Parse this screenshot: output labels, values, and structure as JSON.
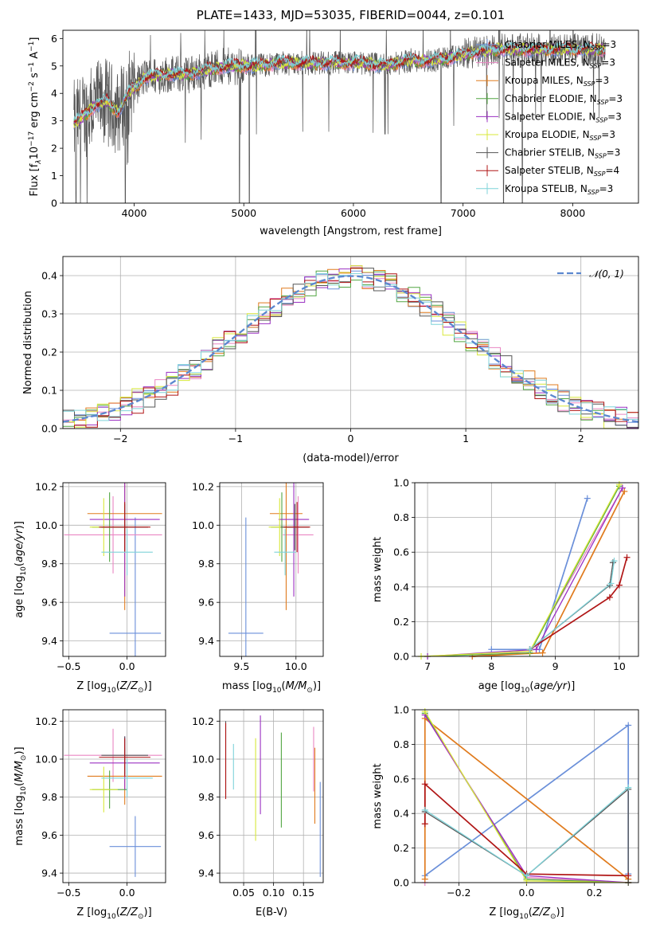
{
  "colors": {
    "Chabrier MILES": "#6a8fd9",
    "Salpeter MILES": "#ea86c3",
    "Kroupa MILES": "#e07b1e",
    "Chabrier ELODIE": "#52a642",
    "Salpeter ELODIE": "#9b30c2",
    "Kroupa ELODIE": "#d8e83a",
    "Chabrier STELIB": "#555555",
    "Salpeter STELIB": "#b01515",
    "Kroupa STELIB": "#7fd3d9"
  },
  "chart_data": [
    {
      "id": "spectrum",
      "type": "line",
      "title": "PLATE=1433, MJD=53035, FIBERID=0044, z=0.101",
      "xlabel": "wavelength [Angstrom, rest frame]",
      "ylabel_parts": [
        "Flux [f",
        "λ",
        "10",
        "−17",
        " erg cm",
        "−2",
        " s",
        "−1",
        " A",
        "−1",
        "]"
      ],
      "xlim": [
        3350,
        8600
      ],
      "ylim": [
        0,
        6.3
      ],
      "xticks": [
        4000,
        5000,
        6000,
        7000,
        8000
      ],
      "yticks": [
        0,
        1,
        2,
        3,
        4,
        5,
        6
      ],
      "legend": [
        {
          "name": "Chabrier MILES",
          "nssp": "3"
        },
        {
          "name": "Salpeter MILES",
          "nssp": "3"
        },
        {
          "name": "Kroupa MILES",
          "nssp": "3"
        },
        {
          "name": "Chabrier ELODIE",
          "nssp": "3"
        },
        {
          "name": "Salpeter ELODIE",
          "nssp": "3"
        },
        {
          "name": "Kroupa ELODIE",
          "nssp": "3"
        },
        {
          "name": "Chabrier STELIB",
          "nssp": "3"
        },
        {
          "name": "Salpeter STELIB",
          "nssp": "4"
        },
        {
          "name": "Kroupa STELIB",
          "nssp": "3"
        }
      ],
      "legend_prefix": "N",
      "legend_sub": "SSP",
      "legend_placement": "right",
      "data_profile": {
        "x": [
          3450,
          3550,
          3650,
          3750,
          3850,
          3950,
          4100,
          4300,
          4500,
          4700,
          4900,
          5100,
          5300,
          5500,
          5700,
          5900,
          6100,
          6300,
          6500,
          6700,
          6900,
          7100,
          7300
        ],
        "y": [
          2.9,
          3.2,
          3.6,
          3.7,
          3.3,
          4.0,
          4.6,
          4.7,
          4.7,
          4.9,
          5.0,
          5.0,
          5.1,
          5.1,
          5.1,
          5.1,
          5.1,
          5.0,
          5.2,
          5.2,
          5.3,
          5.5,
          5.6
        ]
      },
      "dips": [
        3470,
        3510,
        3570,
        3920,
        4960,
        5050,
        6800,
        7370,
        7540
      ],
      "grid": false
    },
    {
      "id": "residuals",
      "type": "histogram",
      "xlabel": "(data-model)/error",
      "ylabel": "Normed distribution",
      "xlim": [
        -2.5,
        2.5
      ],
      "ylim": [
        0,
        0.45
      ],
      "xticks": [
        -2,
        -1,
        0,
        1,
        2
      ],
      "yticks": [
        0.0,
        0.1,
        0.2,
        0.3,
        0.4
      ],
      "legend": "𝒩(0, 1)",
      "legend_placement": "top-right",
      "bin_width": 0.1,
      "grid": true
    },
    {
      "id": "age_vs_Z",
      "type": "errorbar",
      "xlabel_parts": [
        "Z [log",
        "10",
        "(",
        "Z/Z",
        "⊙",
        ")]"
      ],
      "ylabel_parts": [
        "age  [log",
        "10",
        "(",
        "age/yr",
        ")]"
      ],
      "xlim": [
        -0.55,
        0.33
      ],
      "ylim": [
        9.32,
        10.22
      ],
      "xticks": [
        -0.5,
        0.0
      ],
      "yticks": [
        9.4,
        9.6,
        9.8,
        10.0,
        10.2
      ],
      "points": [
        {
          "model": "Chabrier MILES",
          "x": 0.07,
          "xerr": 0.22,
          "y": 9.44,
          "yerr": 0.6
        },
        {
          "model": "Salpeter MILES",
          "x": -0.12,
          "xerr": 0.42,
          "y": 9.95,
          "yerr": 0.2
        },
        {
          "model": "Kroupa MILES",
          "x": -0.02,
          "xerr": 0.32,
          "y": 10.06,
          "yerr": 0.5
        },
        {
          "model": "Chabrier ELODIE",
          "x": -0.15,
          "xerr": 0.15,
          "y": 9.99,
          "yerr": 0.18
        },
        {
          "model": "Salpeter ELODIE",
          "x": -0.02,
          "xerr": 0.3,
          "y": 10.03,
          "yerr": 0.4
        },
        {
          "model": "Kroupa ELODIE",
          "x": -0.2,
          "xerr": 0.12,
          "y": 9.99,
          "yerr": 0.15
        },
        {
          "model": "Chabrier STELIB",
          "x": -0.02,
          "xerr": 0.2,
          "y": 9.99,
          "yerr": 0.12
        },
        {
          "model": "Salpeter STELIB",
          "x": -0.02,
          "xerr": 0.22,
          "y": 9.99,
          "yerr": 0.13
        },
        {
          "model": "Kroupa STELIB",
          "x": 0.0,
          "xerr": 0.22,
          "y": 9.86,
          "yerr": 0.12
        }
      ],
      "grid": true
    },
    {
      "id": "age_vs_mass",
      "type": "errorbar",
      "xlabel_parts": [
        "mass [log",
        "10",
        "(",
        "M/M",
        "⊙",
        ")]"
      ],
      "ylabel_parts": [],
      "xlim": [
        9.3,
        10.25
      ],
      "ylim": [
        9.32,
        10.22
      ],
      "xticks": [
        9.5,
        10.0
      ],
      "yticks": [
        9.4,
        9.6,
        9.8,
        10.0,
        10.2
      ],
      "points": [
        {
          "model": "Chabrier MILES",
          "x": 9.54,
          "xerr": 0.16,
          "y": 9.44,
          "yerr": 0.6
        },
        {
          "model": "Salpeter MILES",
          "x": 10.02,
          "xerr": 0.14,
          "y": 9.95,
          "yerr": 0.2
        },
        {
          "model": "Kroupa MILES",
          "x": 9.91,
          "xerr": 0.15,
          "y": 10.06,
          "yerr": 0.5
        },
        {
          "model": "Chabrier ELODIE",
          "x": 9.87,
          "xerr": 0.1,
          "y": 9.99,
          "yerr": 0.18
        },
        {
          "model": "Salpeter ELODIE",
          "x": 9.98,
          "xerr": 0.14,
          "y": 10.03,
          "yerr": 0.4
        },
        {
          "model": "Kroupa ELODIE",
          "x": 9.85,
          "xerr": 0.1,
          "y": 9.99,
          "yerr": 0.15
        },
        {
          "model": "Chabrier STELIB",
          "x": 9.99,
          "xerr": 0.13,
          "y": 9.99,
          "yerr": 0.12
        },
        {
          "model": "Salpeter STELIB",
          "x": 10.01,
          "xerr": 0.12,
          "y": 9.99,
          "yerr": 0.13
        },
        {
          "model": "Kroupa STELIB",
          "x": 9.9,
          "xerr": 0.1,
          "y": 9.86,
          "yerr": 0.12
        }
      ],
      "grid": true
    },
    {
      "id": "weight_vs_age",
      "type": "line",
      "xlabel_parts": [
        "age  [log",
        "10",
        "(",
        "age/yr",
        ")]"
      ],
      "ylabel": "mass weight",
      "xlim": [
        6.8,
        10.3
      ],
      "ylim": [
        0,
        1
      ],
      "xticks": [
        7,
        8,
        9,
        10
      ],
      "yticks": [
        0.0,
        0.2,
        0.4,
        0.6,
        0.8,
        1.0
      ],
      "series": [
        {
          "model": "Chabrier MILES",
          "x": [
            8.0,
            8.6,
            8.75,
            9.5
          ],
          "y": [
            0.04,
            0.04,
            0.04,
            0.91
          ]
        },
        {
          "model": "Salpeter MILES",
          "x": [
            7.7,
            8.6,
            10.05
          ],
          "y": [
            0.0,
            0.03,
            0.97
          ]
        },
        {
          "model": "Kroupa MILES",
          "x": [
            7.7,
            8.8,
            10.08
          ],
          "y": [
            0.0,
            0.02,
            0.95
          ]
        },
        {
          "model": "Chabrier ELODIE",
          "x": [
            7.0,
            8.6,
            10.0
          ],
          "y": [
            0.0,
            0.02,
            0.98
          ]
        },
        {
          "model": "Salpeter ELODIE",
          "x": [
            7.0,
            8.7,
            10.05
          ],
          "y": [
            0.0,
            0.04,
            0.97
          ]
        },
        {
          "model": "Kroupa ELODIE",
          "x": [
            6.9,
            8.6,
            10.0
          ],
          "y": [
            0.0,
            0.03,
            0.99
          ]
        },
        {
          "model": "Chabrier STELIB",
          "x": [
            8.6,
            9.85,
            9.9
          ],
          "y": [
            0.04,
            0.41,
            0.54
          ]
        },
        {
          "model": "Salpeter STELIB",
          "x": [
            8.6,
            9.85,
            10.0,
            10.12
          ],
          "y": [
            0.04,
            0.34,
            0.41,
            0.57
          ]
        },
        {
          "model": "Kroupa STELIB",
          "x": [
            8.6,
            9.87,
            9.92
          ],
          "y": [
            0.04,
            0.42,
            0.55
          ]
        }
      ],
      "grid": true
    },
    {
      "id": "mass_vs_Z",
      "type": "errorbar",
      "xlabel_parts": [
        "Z [log",
        "10",
        "(",
        "Z/Z",
        "⊙",
        ")]"
      ],
      "ylabel_parts": [
        "mass [log",
        "10",
        "(",
        "M/M",
        "⊙",
        ")]"
      ],
      "xlim": [
        -0.55,
        0.33
      ],
      "ylim": [
        9.35,
        10.26
      ],
      "xticks": [
        -0.5,
        0.0
      ],
      "yticks": [
        9.4,
        9.6,
        9.8,
        10.0,
        10.2
      ],
      "points": [
        {
          "model": "Chabrier MILES",
          "x": 0.07,
          "xerr": 0.22,
          "y": 9.54,
          "yerr": 0.16
        },
        {
          "model": "Salpeter MILES",
          "x": -0.12,
          "xerr": 0.42,
          "y": 10.02,
          "yerr": 0.14
        },
        {
          "model": "Kroupa MILES",
          "x": -0.02,
          "xerr": 0.32,
          "y": 9.91,
          "yerr": 0.15
        },
        {
          "model": "Chabrier ELODIE",
          "x": -0.15,
          "xerr": 0.15,
          "y": 9.84,
          "yerr": 0.1
        },
        {
          "model": "Salpeter ELODIE",
          "x": -0.02,
          "xerr": 0.3,
          "y": 9.98,
          "yerr": 0.14
        },
        {
          "model": "Kroupa ELODIE",
          "x": -0.2,
          "xerr": 0.12,
          "y": 9.84,
          "yerr": 0.12
        },
        {
          "model": "Chabrier STELIB",
          "x": -0.02,
          "xerr": 0.2,
          "y": 10.02,
          "yerr": 0.1
        },
        {
          "model": "Salpeter STELIB",
          "x": -0.02,
          "xerr": 0.22,
          "y": 10.01,
          "yerr": 0.1
        },
        {
          "model": "Kroupa STELIB",
          "x": 0.0,
          "xerr": 0.22,
          "y": 9.9,
          "yerr": 0.1
        }
      ],
      "grid": true
    },
    {
      "id": "mass_vs_ebv",
      "type": "errorbar",
      "xlabel": "E(B-V)",
      "xlim": [
        0.01,
        0.183
      ],
      "ylim": [
        9.35,
        10.26
      ],
      "xticks": [
        0.05,
        0.1,
        0.15
      ],
      "xtick_labels": [
        "0.05",
        "0.10",
        "0.15"
      ],
      "yticks": [
        9.4,
        9.6,
        9.8,
        10.0,
        10.2
      ],
      "points": [
        {
          "model": "Chabrier MILES",
          "x": 0.178,
          "y": 9.63,
          "yerr": 0.25
        },
        {
          "model": "Salpeter MILES",
          "x": 0.167,
          "y": 10.0,
          "yerr": 0.17
        },
        {
          "model": "Kroupa MILES",
          "x": 0.169,
          "y": 9.86,
          "yerr": 0.2
        },
        {
          "model": "Chabrier ELODIE",
          "x": 0.113,
          "y": 9.89,
          "yerr": 0.25
        },
        {
          "model": "Salpeter ELODIE",
          "x": 0.078,
          "y": 9.97,
          "yerr": 0.26
        },
        {
          "model": "Kroupa ELODIE",
          "x": 0.07,
          "y": 9.84,
          "yerr": 0.27
        },
        {
          "model": "Chabrier STELIB",
          "x": 0.02,
          "y": 10.0,
          "yerr": 0.2
        },
        {
          "model": "Salpeter STELIB",
          "x": 0.02,
          "y": 9.99,
          "yerr": 0.2
        },
        {
          "model": "Kroupa STELIB",
          "x": 0.033,
          "y": 9.96,
          "yerr": 0.12
        }
      ],
      "grid": true
    },
    {
      "id": "weight_vs_Z",
      "type": "line",
      "xlabel_parts": [
        "Z [log",
        "10",
        "(",
        "Z/Z",
        "⊙",
        ")]"
      ],
      "ylabel": "mass weight",
      "xlim": [
        -0.33,
        0.33
      ],
      "ylim": [
        0,
        1
      ],
      "xticks": [
        -0.2,
        0.0,
        0.2
      ],
      "yticks": [
        0.0,
        0.2,
        0.4,
        0.6,
        0.8,
        1.0
      ],
      "series": [
        {
          "model": "Chabrier MILES",
          "x": [
            -0.3,
            0.3,
            0.3
          ],
          "y": [
            0.04,
            0.91,
            0.05
          ]
        },
        {
          "model": "Salpeter MILES",
          "x": [
            -0.3,
            -0.3,
            0.0,
            0.3
          ],
          "y": [
            0.0,
            0.97,
            0.03,
            0.0
          ]
        },
        {
          "model": "Kroupa MILES",
          "x": [
            -0.3,
            -0.3,
            0.3,
            0.3
          ],
          "y": [
            0.02,
            0.95,
            0.02,
            0.0
          ]
        },
        {
          "model": "Chabrier ELODIE",
          "x": [
            -0.3,
            0.0,
            0.3
          ],
          "y": [
            0.98,
            0.02,
            0.0
          ]
        },
        {
          "model": "Salpeter ELODIE",
          "x": [
            -0.3,
            0.0,
            0.3
          ],
          "y": [
            0.97,
            0.04,
            0.0
          ]
        },
        {
          "model": "Kroupa ELODIE",
          "x": [
            -0.3,
            0.0,
            0.3
          ],
          "y": [
            0.99,
            0.01,
            0.0
          ]
        },
        {
          "model": "Chabrier STELIB",
          "x": [
            -0.3,
            0.0,
            0.3,
            0.3
          ],
          "y": [
            0.41,
            0.04,
            0.54,
            0.0
          ]
        },
        {
          "model": "Salpeter STELIB",
          "x": [
            -0.3,
            -0.3,
            0.0,
            0.3
          ],
          "y": [
            0.34,
            0.57,
            0.05,
            0.04
          ]
        },
        {
          "model": "Kroupa STELIB",
          "x": [
            -0.3,
            0.0,
            0.3
          ],
          "y": [
            0.42,
            0.04,
            0.55
          ]
        }
      ],
      "grid": true
    }
  ]
}
